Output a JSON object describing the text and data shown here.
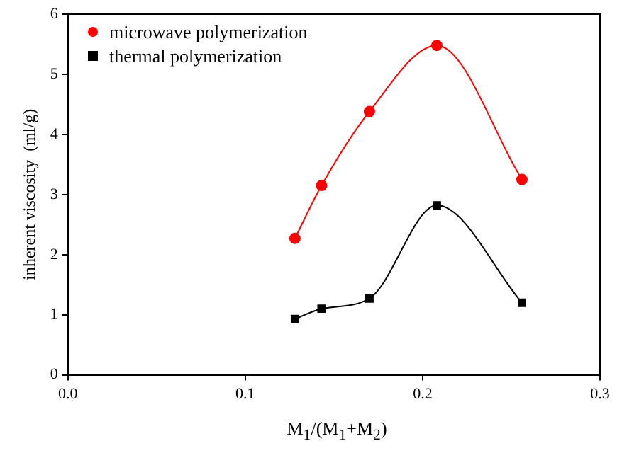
{
  "chart_data": {
    "type": "line",
    "xlabel": "M$_{1}$/(M$_{1}$+M$_{2}$)",
    "ylabel": "inherent viscosity  (ml/g)",
    "xlim": [
      0,
      0.3
    ],
    "xticks": [
      {
        "value": 0,
        "label": "0.0"
      },
      0.1,
      0.2,
      0.3
    ],
    "ylim": [
      0,
      6
    ],
    "yticks": [
      0,
      1,
      2,
      3,
      4,
      5,
      6
    ],
    "x": [
      0.128,
      0.143,
      0.17,
      0.208,
      0.256
    ],
    "series": [
      {
        "name": "microwave polymerization",
        "color": "#ff0000",
        "marker": "circle",
        "values": [
          2.27,
          3.15,
          4.38,
          5.48,
          3.25
        ]
      },
      {
        "name": "thermal polymerization",
        "color": "#000000",
        "marker": "square",
        "values": [
          0.93,
          1.1,
          1.27,
          2.82,
          1.2
        ]
      }
    ],
    "grid": false,
    "legend": "top left"
  }
}
